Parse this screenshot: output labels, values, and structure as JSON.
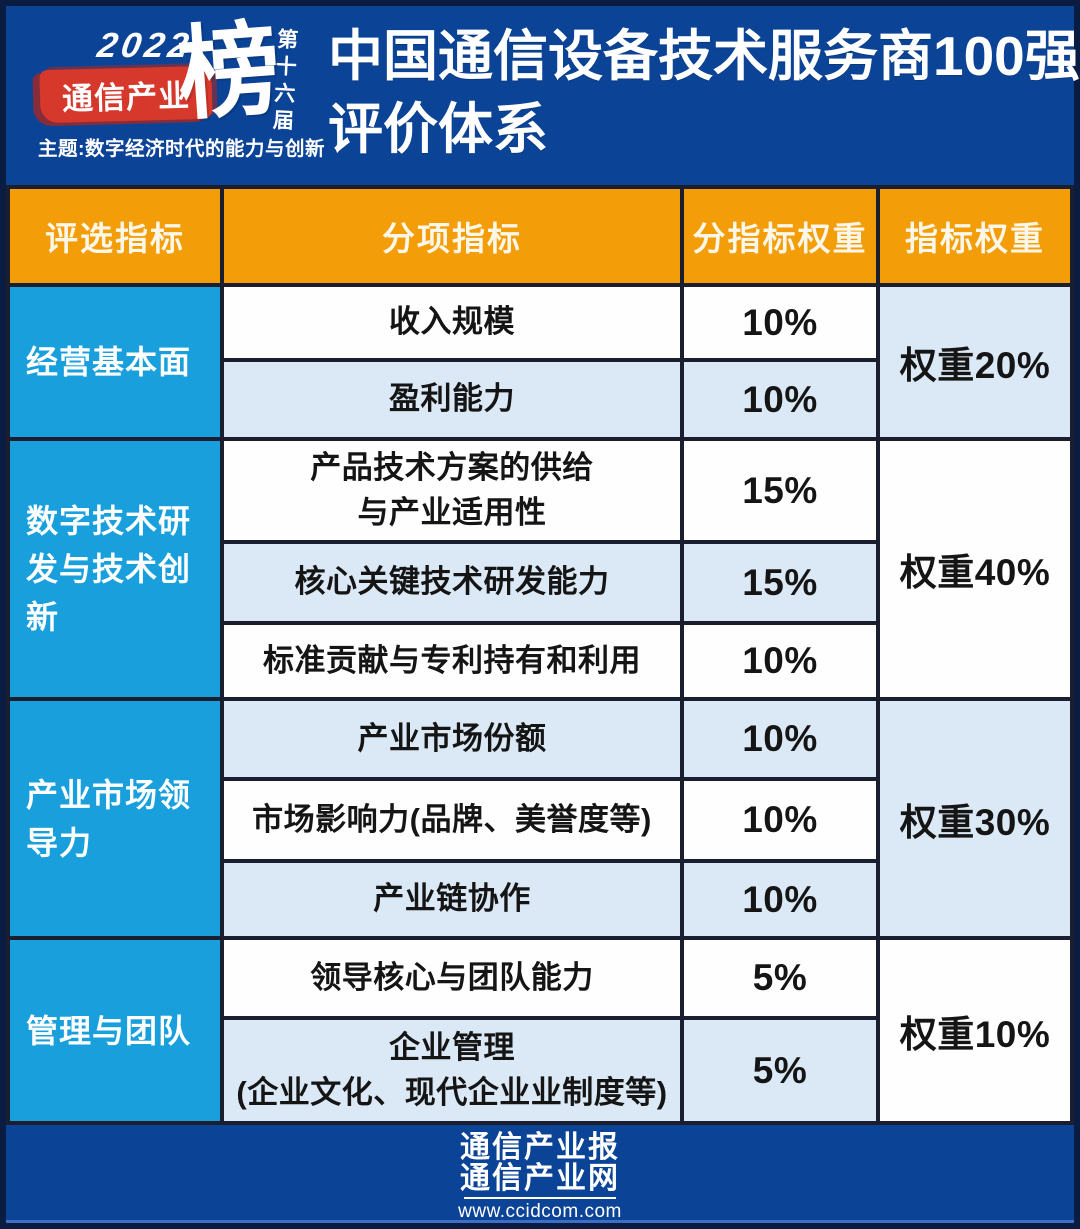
{
  "colors": {
    "frame_navy": "#0a1c42",
    "band_blue": "#0b4397",
    "header_orange": "#f39d08",
    "group_cyan": "#189fdc",
    "row_light_blue": "#dbe8f5",
    "row_white": "#fefefe",
    "gridline": "#1b1e2e",
    "logo_red": "#d6382c",
    "text_dark": "#151515"
  },
  "header": {
    "logo": {
      "year": "2022",
      "brand": "通信产业",
      "bang": "榜",
      "edition": "第十六届",
      "theme": "主题:数字经济时代的能力与创新"
    },
    "title_line1": "中国通信设备技术服务商100强",
    "title_line2": "评价体系"
  },
  "chart_data": {
    "type": "table",
    "title": "中国通信设备技术服务商100强评价体系",
    "columns": [
      "评选指标",
      "分项指标",
      "分指标权重",
      "指标权重"
    ],
    "groups": [
      {
        "name": "经营基本面",
        "weight_label": "权重20%",
        "weight_value": 20,
        "rows": [
          {
            "lines": [
              "收入规模"
            ],
            "weight": "10%",
            "weight_value": 10
          },
          {
            "lines": [
              "盈利能力"
            ],
            "weight": "10%",
            "weight_value": 10
          }
        ]
      },
      {
        "name": "数字技术研发与技术创新",
        "weight_label": "权重40%",
        "weight_value": 40,
        "rows": [
          {
            "lines": [
              "产品技术方案的供给",
              "与产业适用性"
            ],
            "weight": "15%",
            "weight_value": 15
          },
          {
            "lines": [
              "核心关键技术研发能力"
            ],
            "weight": "15%",
            "weight_value": 15
          },
          {
            "lines": [
              "标准贡献与专利持有和利用"
            ],
            "weight": "10%",
            "weight_value": 10
          }
        ]
      },
      {
        "name": "产业市场领导力",
        "weight_label": "权重30%",
        "weight_value": 30,
        "rows": [
          {
            "lines": [
              "产业市场份额"
            ],
            "weight": "10%",
            "weight_value": 10
          },
          {
            "lines": [
              "市场影响力(品牌、美誉度等)"
            ],
            "weight": "10%",
            "weight_value": 10
          },
          {
            "lines": [
              "产业链协作"
            ],
            "weight": "10%",
            "weight_value": 10
          }
        ]
      },
      {
        "name": "管理与团队",
        "weight_label": "权重10%",
        "weight_value": 10,
        "rows": [
          {
            "lines": [
              "领导核心与团队能力"
            ],
            "weight": "5%",
            "weight_value": 5
          },
          {
            "lines": [
              "企业管理",
              "(企业文化、现代企业业制度等)"
            ],
            "weight": "5%",
            "weight_value": 5
          }
        ]
      }
    ]
  },
  "footer": {
    "line1": "通信产业报",
    "line2": "通信产业网",
    "url": "www.ccidcom.com"
  }
}
